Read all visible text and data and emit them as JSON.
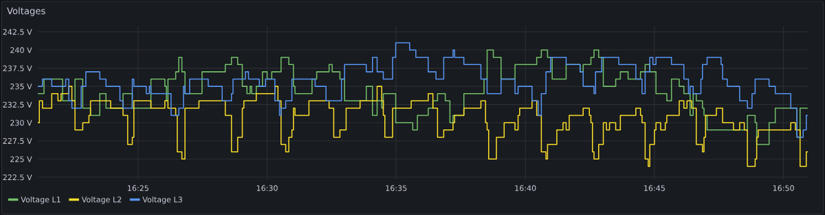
{
  "chart_data": {
    "type": "step",
    "title": "Voltages",
    "xlim": [
      16.352,
      16.849
    ],
    "ylim": [
      222.2,
      243.3
    ],
    "xticks": [
      {
        "value": 16.4167,
        "label": "16:25"
      },
      {
        "value": 16.5,
        "label": "16:30"
      },
      {
        "value": 16.5833,
        "label": "16:35"
      },
      {
        "value": 16.6667,
        "label": "16:40"
      },
      {
        "value": 16.75,
        "label": "16:45"
      },
      {
        "value": 16.8333,
        "label": "16:50"
      }
    ],
    "yticks": [
      {
        "value": 222.5,
        "label": "222.5 V"
      },
      {
        "value": 225,
        "label": "225 V"
      },
      {
        "value": 227.5,
        "label": "227.5 V"
      },
      {
        "value": 230,
        "label": "230 V"
      },
      {
        "value": 232.5,
        "label": "232.5 V"
      },
      {
        "value": 235,
        "label": "235 V"
      },
      {
        "value": 237.5,
        "label": "237.5 V"
      },
      {
        "value": 240,
        "label": "240 V"
      },
      {
        "value": 242.5,
        "label": "242.5 V"
      }
    ],
    "grid": true,
    "legend": "bottom left",
    "marker": "none",
    "line_style": "solid",
    "series": [
      {
        "name": "Voltage L1",
        "color": "#73bf69",
        "x": [
          16.352,
          16.356,
          16.368,
          16.376,
          16.381,
          16.386,
          16.392,
          16.396,
          16.407,
          16.413,
          16.425,
          16.434,
          16.435,
          16.436,
          16.441,
          16.443,
          16.445,
          16.447,
          16.458,
          16.473,
          16.477,
          16.481,
          16.484,
          16.487,
          16.489,
          16.49,
          16.493,
          16.497,
          16.5,
          16.503,
          16.509,
          16.514,
          16.517,
          16.518,
          16.529,
          16.532,
          16.54,
          16.542,
          16.547,
          16.55,
          16.564,
          16.568,
          16.571,
          16.574,
          16.575,
          16.583,
          16.594,
          16.597,
          16.604,
          16.607,
          16.61,
          16.615,
          16.618,
          16.62,
          16.627,
          16.64,
          16.642,
          16.646,
          16.651,
          16.66,
          16.674,
          16.677,
          16.681,
          16.684,
          16.693,
          16.702,
          16.704,
          16.709,
          16.711,
          16.714,
          16.717,
          16.725,
          16.728,
          16.733,
          16.741,
          16.744,
          16.747,
          16.751,
          16.758,
          16.761,
          16.766,
          16.769,
          16.773,
          16.775,
          16.777,
          16.781,
          16.782,
          16.784,
          16.81,
          16.815,
          16.816,
          16.824,
          16.828,
          16.842,
          16.844,
          16.849
        ],
        "values": [
          234,
          236,
          233,
          236,
          232,
          231,
          234,
          232,
          234,
          232,
          236,
          235,
          233,
          236,
          237,
          239,
          237,
          234,
          237,
          238,
          239,
          238,
          235,
          234,
          235,
          234,
          235,
          237,
          236,
          237,
          239,
          238,
          235,
          234,
          236,
          237,
          238,
          237,
          236,
          233,
          235,
          231,
          233,
          232,
          234,
          230,
          229,
          231,
          232,
          233,
          234,
          233,
          230,
          231,
          234,
          236,
          240,
          239,
          236,
          238,
          239,
          240,
          239,
          236,
          238,
          237,
          238,
          239,
          240,
          239,
          235,
          236,
          237,
          236,
          237,
          238,
          237,
          234,
          233,
          236,
          235,
          234,
          231,
          234,
          233,
          232,
          231,
          229,
          231,
          230,
          227,
          230,
          232,
          228,
          232,
          232
        ]
      },
      {
        "name": "Voltage L2",
        "color": "#fade2a",
        "x": [
          16.352,
          16.353,
          16.355,
          16.361,
          16.365,
          16.367,
          16.372,
          16.374,
          16.376,
          16.381,
          16.385,
          16.386,
          16.399,
          16.407,
          16.41,
          16.413,
          16.414,
          16.425,
          16.434,
          16.436,
          16.441,
          16.442,
          16.445,
          16.447,
          16.456,
          16.473,
          16.477,
          16.481,
          16.484,
          16.485,
          16.493,
          16.505,
          16.507,
          16.509,
          16.512,
          16.514,
          16.516,
          16.517,
          16.518,
          16.527,
          16.54,
          16.543,
          16.547,
          16.551,
          16.56,
          16.571,
          16.574,
          16.575,
          16.576,
          16.581,
          16.593,
          16.604,
          16.607,
          16.61,
          16.614,
          16.62,
          16.621,
          16.627,
          16.638,
          16.641,
          16.642,
          16.643,
          16.648,
          16.653,
          16.66,
          16.662,
          16.663,
          16.671,
          16.674,
          16.677,
          16.68,
          16.681,
          16.687,
          16.691,
          16.693,
          16.695,
          16.704,
          16.708,
          16.709,
          16.71,
          16.711,
          16.714,
          16.717,
          16.719,
          16.721,
          16.725,
          16.728,
          16.738,
          16.741,
          16.742,
          16.744,
          16.746,
          16.747,
          16.75,
          16.751,
          16.754,
          16.757,
          16.758,
          16.766,
          16.769,
          16.771,
          16.774,
          16.777,
          16.781,
          16.782,
          16.783,
          16.79,
          16.794,
          16.801,
          16.805,
          16.808,
          16.81,
          16.815,
          16.816,
          16.817,
          16.838,
          16.841,
          16.844,
          16.848,
          16.849
        ],
        "values": [
          230,
          233,
          232,
          234,
          233,
          234,
          235,
          233,
          229,
          230,
          231,
          233,
          232,
          231,
          227,
          228,
          233,
          232,
          233,
          232,
          231,
          226,
          225,
          232,
          233,
          231,
          226,
          228,
          232,
          233,
          234,
          235,
          233,
          227,
          226,
          228,
          229,
          232,
          231,
          233,
          232,
          228,
          229,
          232,
          233,
          235,
          233,
          231,
          228,
          232,
          233,
          234,
          232,
          228,
          229,
          230,
          231,
          232,
          233,
          230,
          229,
          225,
          228,
          230,
          229,
          231,
          232,
          233,
          231,
          226,
          225,
          227,
          229,
          230,
          229,
          231,
          232,
          231,
          230,
          226,
          225,
          227,
          230,
          229,
          230,
          229,
          231,
          232,
          231,
          230,
          225,
          224,
          227,
          229,
          230,
          229,
          230,
          231,
          233,
          232,
          233,
          232,
          227,
          226,
          228,
          231,
          232,
          230,
          229,
          230,
          229,
          224,
          225,
          228,
          229,
          230,
          229,
          224,
          226,
          226
        ]
      },
      {
        "name": "Voltage L3",
        "color": "#5794f2",
        "x": [
          16.352,
          16.355,
          16.361,
          16.37,
          16.372,
          16.374,
          16.38,
          16.383,
          16.392,
          16.396,
          16.405,
          16.407,
          16.413,
          16.414,
          16.422,
          16.424,
          16.425,
          16.438,
          16.443,
          16.446,
          16.447,
          16.45,
          16.462,
          16.471,
          16.477,
          16.478,
          16.486,
          16.488,
          16.495,
          16.499,
          16.505,
          16.508,
          16.509,
          16.512,
          16.516,
          16.531,
          16.538,
          16.548,
          16.55,
          16.564,
          16.568,
          16.571,
          16.575,
          16.581,
          16.583,
          16.592,
          16.596,
          16.604,
          16.609,
          16.614,
          16.62,
          16.621,
          16.627,
          16.638,
          16.642,
          16.651,
          16.66,
          16.662,
          16.671,
          16.675,
          16.677,
          16.68,
          16.683,
          16.693,
          16.702,
          16.704,
          16.711,
          16.712,
          16.716,
          16.727,
          16.738,
          16.742,
          16.744,
          16.747,
          16.749,
          16.751,
          16.761,
          16.769,
          16.772,
          16.773,
          16.775,
          16.78,
          16.781,
          16.784,
          16.793,
          16.794,
          16.797,
          16.805,
          16.81,
          16.813,
          16.815,
          16.824,
          16.828,
          16.838,
          16.842,
          16.846,
          16.848,
          16.849
        ],
        "values": [
          235,
          236,
          235,
          236,
          233,
          232,
          235,
          237,
          236,
          235,
          233,
          232,
          236,
          235,
          234,
          235,
          234,
          231,
          232,
          235,
          234,
          236,
          235,
          233,
          234,
          236,
          237,
          236,
          235,
          236,
          233,
          231,
          232,
          233,
          236,
          235,
          233,
          236,
          238,
          237,
          239,
          237,
          236,
          239,
          241,
          240,
          239,
          237,
          236,
          239,
          240,
          239,
          238,
          236,
          234,
          236,
          234,
          235,
          233,
          231,
          234,
          237,
          239,
          238,
          237,
          235,
          234,
          237,
          239,
          238,
          236,
          234,
          237,
          239,
          238,
          239,
          238,
          236,
          234,
          235,
          234,
          236,
          238,
          239,
          238,
          236,
          235,
          233,
          232,
          234,
          236,
          235,
          234,
          232,
          228,
          229,
          231,
          231
        ]
      }
    ]
  }
}
